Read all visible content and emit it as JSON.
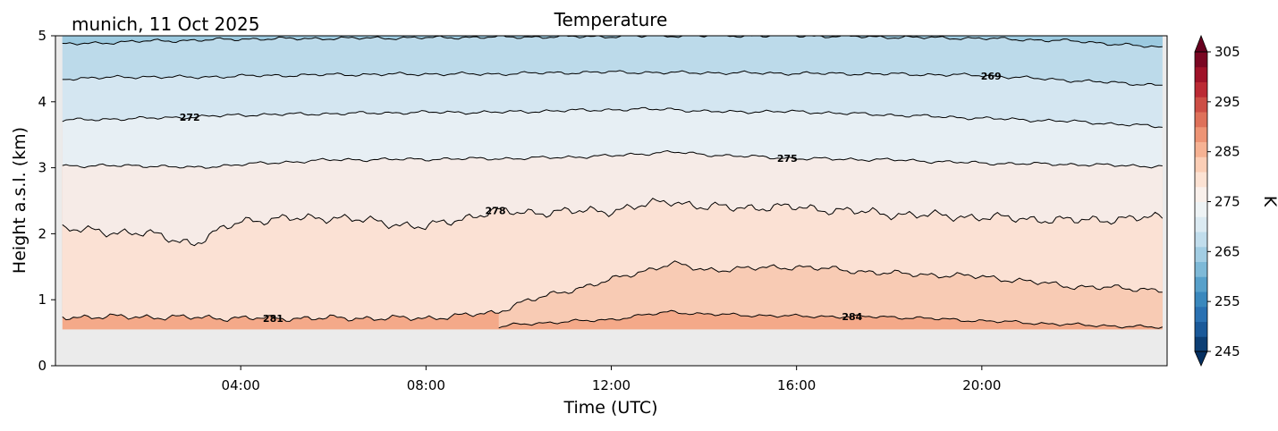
{
  "station_label": "munich, 11 Oct 2025",
  "chart_data": {
    "type": "heatmap",
    "title": "Temperature",
    "xlabel": "Time (UTC)",
    "ylabel": "Height a.s.l. (km)",
    "x_units": "hours UTC",
    "xlim": [
      0,
      24
    ],
    "ylim": [
      0,
      5
    ],
    "xticks": [
      {
        "value": 4,
        "label": "04:00"
      },
      {
        "value": 8,
        "label": "08:00"
      },
      {
        "value": 12,
        "label": "12:00"
      },
      {
        "value": 16,
        "label": "16:00"
      },
      {
        "value": 20,
        "label": "20:00"
      }
    ],
    "yticks": [
      {
        "value": 0,
        "label": "0"
      },
      {
        "value": 1,
        "label": "1"
      },
      {
        "value": 2,
        "label": "2"
      },
      {
        "value": 3,
        "label": "3"
      },
      {
        "value": 4,
        "label": "4"
      },
      {
        "value": 5,
        "label": "5"
      }
    ],
    "data_bottom_km": 0.55,
    "no_data_color": "#ebebeb",
    "colormap": "RdBu_r",
    "colorbar": {
      "label": "K",
      "range": [
        245,
        305
      ],
      "ticks": [
        {
          "value": 245,
          "label": "245"
        },
        {
          "value": 255,
          "label": "255"
        },
        {
          "value": 265,
          "label": "265"
        },
        {
          "value": 275,
          "label": "275"
        },
        {
          "value": 285,
          "label": "285"
        },
        {
          "value": 295,
          "label": "295"
        },
        {
          "value": 305,
          "label": "305"
        }
      ],
      "extend": "both"
    },
    "isotherm_times": [
      0.15,
      2,
      3,
      4,
      6,
      8,
      9.5,
      10,
      12,
      13.3,
      14,
      16,
      18,
      20,
      22,
      23.9
    ],
    "isotherms": [
      {
        "level": 266,
        "label": "",
        "color": "#a9cde3",
        "heights": [
          4.87,
          4.92,
          4.93,
          4.95,
          4.96,
          4.97,
          4.98,
          4.98,
          4.99,
          5.0,
          5.0,
          5.0,
          4.98,
          4.96,
          4.92,
          4.82
        ]
      },
      {
        "level": 269,
        "label": "269",
        "label_time": 20.2,
        "color": "#bcdaea",
        "heights": [
          4.35,
          4.38,
          4.37,
          4.39,
          4.41,
          4.42,
          4.42,
          4.43,
          4.45,
          4.44,
          4.44,
          4.43,
          4.42,
          4.4,
          4.32,
          4.25
        ]
      },
      {
        "level": 272,
        "label": "272",
        "label_time": 2.9,
        "color": "#d4e6f1",
        "heights": [
          3.72,
          3.75,
          3.77,
          3.8,
          3.82,
          3.84,
          3.84,
          3.85,
          3.88,
          3.89,
          3.85,
          3.85,
          3.8,
          3.75,
          3.7,
          3.62
        ]
      },
      {
        "level": 275,
        "label": "275",
        "label_time": 15.8,
        "color": "#e7eff4",
        "heights": [
          3.03,
          3.03,
          3.0,
          3.05,
          3.12,
          3.13,
          3.14,
          3.14,
          3.18,
          3.24,
          3.2,
          3.14,
          3.12,
          3.07,
          3.05,
          3.02
        ]
      },
      {
        "level": 278,
        "label": "278",
        "label_time": 9.5,
        "color": "#f6ebe7",
        "heights": [
          2.07,
          2.0,
          1.85,
          2.2,
          2.25,
          2.1,
          2.35,
          2.32,
          2.35,
          2.5,
          2.4,
          2.4,
          2.3,
          2.25,
          2.2,
          2.25
        ]
      },
      {
        "level": 281,
        "label": "281",
        "label_time": 4.7,
        "color": "#fbe1d4",
        "heights": [
          0.74,
          0.74,
          0.73,
          0.72,
          0.72,
          0.72,
          0.8,
          0.95,
          1.3,
          1.55,
          1.45,
          1.5,
          1.4,
          1.35,
          1.2,
          1.15
        ]
      },
      {
        "level": 284,
        "label": "284",
        "label_time": 17.2,
        "color": "#f8cbb4",
        "heights": [
          null,
          null,
          null,
          null,
          null,
          null,
          0.57,
          0.63,
          0.7,
          0.82,
          0.78,
          0.75,
          0.74,
          0.68,
          0.62,
          0.58
        ]
      }
    ]
  }
}
